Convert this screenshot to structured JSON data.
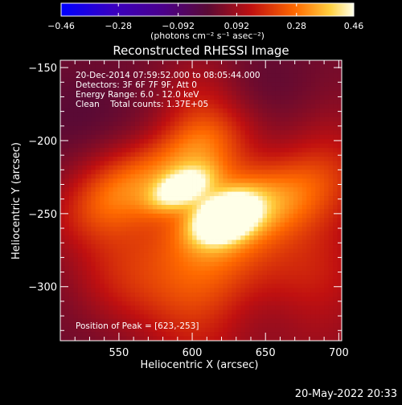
{
  "chart_data": {
    "type": "heatmap",
    "title": "Reconstructed RHESSI Image",
    "xlabel": "Heliocentric X (arcsec)",
    "ylabel": "Heliocentric Y (arcsec)",
    "xlim": [
      510,
      702
    ],
    "ylim": [
      -337,
      -145
    ],
    "x_ticks": [
      550,
      600,
      650,
      700
    ],
    "y_ticks": [
      -150,
      -200,
      -250,
      -300
    ],
    "colorbar": {
      "ticks": [
        -0.46,
        -0.28,
        -0.092,
        0.092,
        0.28,
        0.46
      ],
      "tick_labels": [
        "−0.46",
        "−0.28",
        "−0.092",
        "0.092",
        "0.28",
        "0.46"
      ],
      "range": [
        -0.46,
        0.46
      ],
      "label": "(photons cm⁻² s⁻¹ asec⁻²)"
    },
    "annotations": [
      "20-Dec-2014 07:59:52.000 to 08:05:44.000",
      "Detectors: 3F 6F 7F 9F, Att 0",
      "Energy Range: 6.0 - 12.0 keV",
      "Clean    Total counts: 1.37E+05"
    ],
    "peak_label": "Position of Peak = [623,-253]",
    "peak": [
      623,
      -253
    ],
    "features": [
      {
        "x": 623,
        "y": -253,
        "value": 0.46,
        "sx": 14,
        "sy": 9,
        "angle": -25
      },
      {
        "x": 592,
        "y": -233,
        "value": 0.3,
        "sx": 15,
        "sy": 8,
        "angle": -25
      },
      {
        "x": 575,
        "y": -222,
        "value": 0.18,
        "sx": 45,
        "sy": 16,
        "angle": -28
      },
      {
        "x": 645,
        "y": -245,
        "value": 0.22,
        "sx": 40,
        "sy": 18,
        "angle": -20
      },
      {
        "x": 612,
        "y": -285,
        "value": 0.2,
        "sx": 28,
        "sy": 55,
        "angle": 10
      },
      {
        "x": 560,
        "y": -300,
        "value": 0.12,
        "sx": 30,
        "sy": 22,
        "angle": 0
      },
      {
        "x": 680,
        "y": -300,
        "value": 0.14,
        "sx": 30,
        "sy": 40,
        "angle": 0
      },
      {
        "x": 690,
        "y": -200,
        "value": 0.1,
        "sx": 25,
        "sy": 35,
        "angle": 0
      },
      {
        "x": 605,
        "y": -185,
        "value": 0.12,
        "sx": 20,
        "sy": 30,
        "angle": 0
      },
      {
        "x": 545,
        "y": -250,
        "value": 0.14,
        "sx": 25,
        "sy": 45,
        "angle": 0
      },
      {
        "x": 535,
        "y": -190,
        "value": -0.07,
        "sx": 28,
        "sy": 25,
        "angle": 0
      },
      {
        "x": 665,
        "y": -175,
        "value": -0.07,
        "sx": 35,
        "sy": 25,
        "angle": 0
      },
      {
        "x": 548,
        "y": -300,
        "value": -0.07,
        "sx": 30,
        "sy": 28,
        "angle": 0
      },
      {
        "x": 655,
        "y": -320,
        "value": -0.06,
        "sx": 35,
        "sy": 20,
        "angle": 0
      }
    ]
  },
  "footer": {
    "timestamp": "20-May-2022 20:33"
  }
}
